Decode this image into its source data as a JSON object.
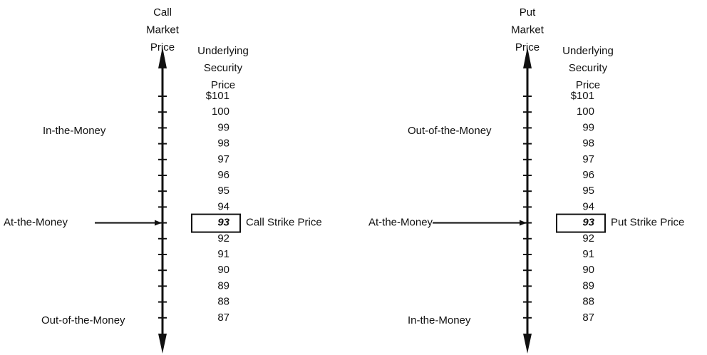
{
  "panels": [
    {
      "axis_title": [
        "Call",
        "Market",
        "Price"
      ],
      "column_title": [
        "Underlying",
        "Security",
        "Price"
      ],
      "prices_above": [
        "$101",
        "100",
        "99",
        "98",
        "97",
        "96",
        "95",
        "94"
      ],
      "strike_price": "93",
      "prices_below": [
        "92",
        "91",
        "90",
        "89",
        "88",
        "87"
      ],
      "strike_label": "Call Strike Price",
      "top_label": "In-the-Money",
      "middle_label": "At-the-Money",
      "bottom_label": "Out-of-the-Money"
    },
    {
      "axis_title": [
        "Put",
        "Market",
        "Price"
      ],
      "column_title": [
        "Underlying",
        "Security",
        "Price"
      ],
      "prices_above": [
        "$101",
        "100",
        "99",
        "98",
        "97",
        "96",
        "95",
        "94"
      ],
      "strike_price": "93",
      "prices_below": [
        "92",
        "91",
        "90",
        "89",
        "88",
        "87"
      ],
      "strike_label": "Put Strike Price",
      "top_label": "Out-of-the-Money",
      "middle_label": "At-the-Money",
      "bottom_label": "In-the-Money"
    }
  ]
}
